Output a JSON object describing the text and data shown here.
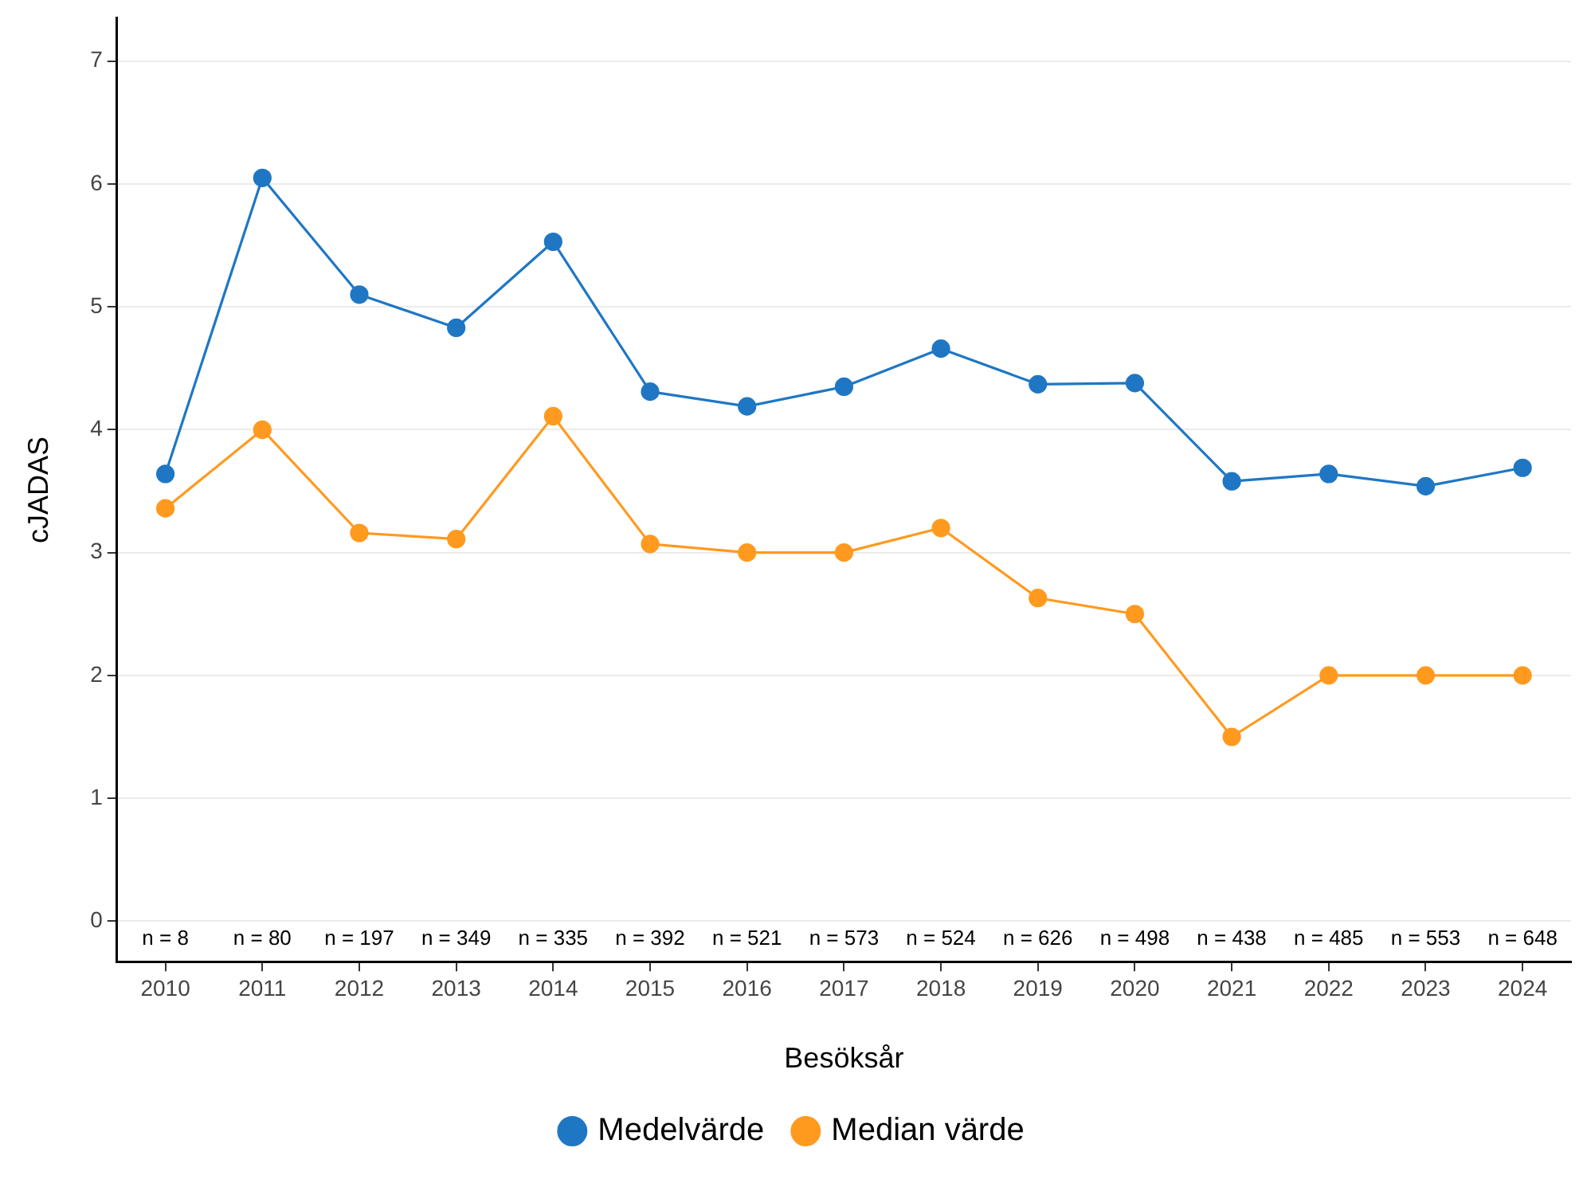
{
  "chart_data": {
    "type": "line",
    "xlabel": "Besöksår",
    "ylabel": "cJADAS",
    "categories": [
      "2010",
      "2011",
      "2012",
      "2013",
      "2014",
      "2015",
      "2016",
      "2017",
      "2018",
      "2019",
      "2020",
      "2021",
      "2022",
      "2023",
      "2024"
    ],
    "series": [
      {
        "name": "Medelvärde",
        "color": "#1f77c4",
        "values": [
          3.64,
          6.05,
          5.1,
          4.83,
          5.53,
          4.31,
          4.19,
          4.35,
          4.66,
          4.37,
          4.38,
          3.58,
          3.64,
          3.54,
          3.69
        ]
      },
      {
        "name": "Median värde",
        "color": "#ff9a1f",
        "values": [
          3.36,
          4.0,
          3.16,
          3.11,
          4.11,
          3.07,
          3.0,
          3.0,
          3.2,
          2.63,
          2.5,
          1.5,
          2.0,
          2.0,
          2.0
        ]
      }
    ],
    "ylim": [
      -0.33,
      7.35
    ],
    "yticks": [
      0,
      1,
      2,
      3,
      4,
      5,
      6,
      7
    ],
    "grid": "y",
    "legend": "bottom",
    "marker": "circle",
    "line_style": "solid",
    "annotations": [
      "n = 8",
      "n = 80",
      "n = 197",
      "n = 349",
      "n = 335",
      "n = 392",
      "n = 521",
      "n = 573",
      "n = 524",
      "n = 626",
      "n = 498",
      "n = 438",
      "n = 485",
      "n = 553",
      "n = 648"
    ]
  }
}
